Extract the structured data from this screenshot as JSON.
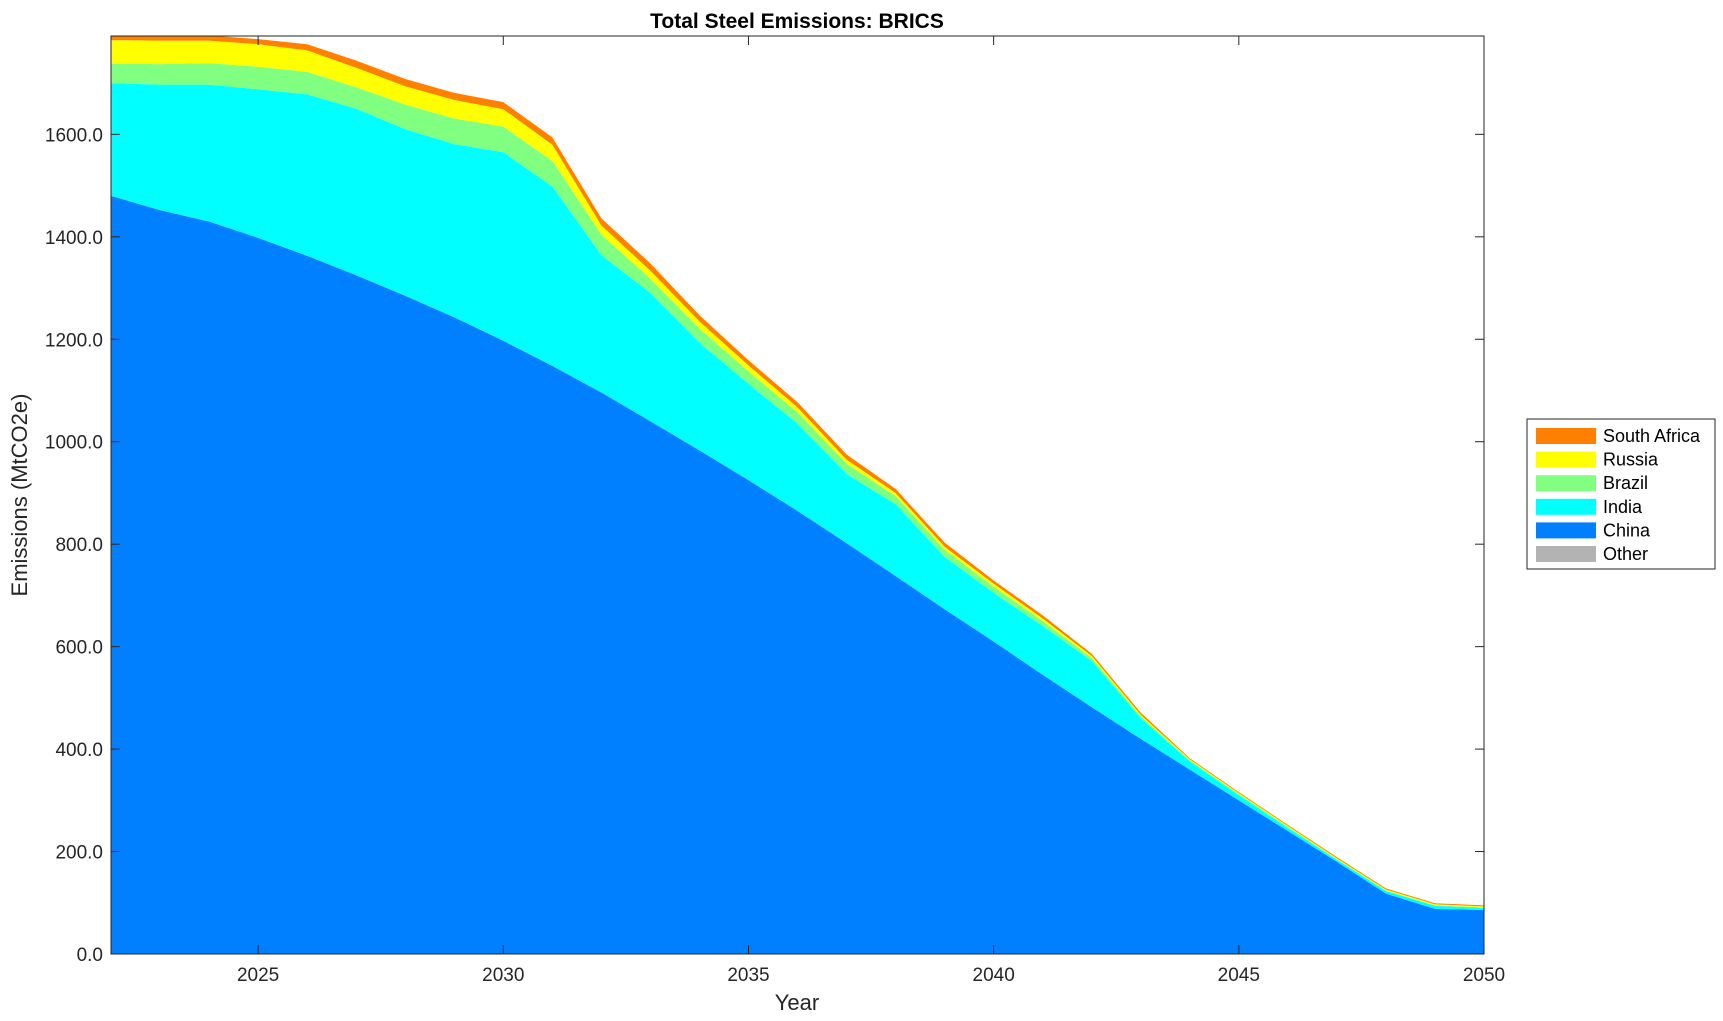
{
  "chart_data": {
    "type": "area",
    "stacked": true,
    "title": "Total Steel Emissions: BRICS",
    "xlabel": "Year",
    "ylabel": "Emissions (MtCO2e)",
    "xlim": [
      2022,
      2050
    ],
    "ylim": [
      0,
      1792
    ],
    "x_ticks": [
      2025,
      2030,
      2035,
      2040,
      2045,
      2050
    ],
    "y_ticks": [
      0,
      200,
      400,
      600,
      800,
      1000,
      1200,
      1400,
      1600
    ],
    "y_tick_labels": [
      "0.0",
      "200.0",
      "400.0",
      "600.0",
      "800.0",
      "1000.0",
      "1200.0",
      "1400.0",
      "1600.0"
    ],
    "grid": false,
    "legend_position": "right",
    "x": [
      2022,
      2023,
      2024,
      2025,
      2026,
      2027,
      2028,
      2029,
      2030,
      2031,
      2032,
      2033,
      2034,
      2035,
      2036,
      2037,
      2038,
      2039,
      2040,
      2041,
      2042,
      2043,
      2044,
      2045,
      2046,
      2047,
      2048,
      2049,
      2050
    ],
    "series": [
      {
        "name": "Other",
        "color": "#b3b3b3",
        "values": [
          0,
          0,
          0,
          0,
          0,
          0,
          0,
          0,
          0,
          0,
          0,
          0,
          0,
          0,
          0,
          0,
          0,
          0,
          0,
          0,
          0,
          0,
          0,
          0,
          0,
          0,
          0,
          0,
          0
        ]
      },
      {
        "name": "China",
        "color": "#0080ff",
        "values": [
          1480,
          1452,
          1430,
          1398,
          1363,
          1325,
          1285,
          1243,
          1197,
          1148,
          1096,
          1040,
          983,
          925,
          865,
          802,
          738,
          673,
          610,
          545,
          482,
          420,
          360,
          300,
          240,
          180,
          118,
          88,
          86
        ]
      },
      {
        "name": "India",
        "color": "#00ffff",
        "values": [
          220,
          245,
          267,
          290,
          315,
          325,
          325,
          338,
          368,
          350,
          268,
          250,
          210,
          188,
          170,
          135,
          140,
          102,
          95,
          95,
          90,
          40,
          16,
          10,
          6,
          4,
          5,
          6,
          4
        ]
      },
      {
        "name": "Brazil",
        "color": "#80ff80",
        "values": [
          38,
          40,
          42,
          44,
          44,
          42,
          48,
          50,
          50,
          50,
          40,
          28,
          28,
          24,
          22,
          20,
          16,
          14,
          12,
          10,
          6,
          4,
          2,
          2,
          2,
          1,
          1,
          1,
          1
        ]
      },
      {
        "name": "Russia",
        "color": "#ffff00",
        "values": [
          46,
          46,
          44,
          44,
          42,
          38,
          36,
          36,
          34,
          32,
          18,
          16,
          14,
          12,
          10,
          8,
          6,
          6,
          6,
          5,
          4,
          3,
          2,
          2,
          2,
          2,
          2,
          2,
          2
        ]
      },
      {
        "name": "South Africa",
        "color": "#ff8000",
        "values": [
          8,
          8,
          10,
          10,
          12,
          14,
          14,
          14,
          14,
          14,
          14,
          14,
          12,
          10,
          10,
          10,
          8,
          8,
          6,
          6,
          4,
          4,
          2,
          2,
          2,
          2,
          2,
          2,
          2
        ]
      }
    ],
    "legend_order": [
      "South Africa",
      "Russia",
      "Brazil",
      "India",
      "China",
      "Other"
    ]
  }
}
